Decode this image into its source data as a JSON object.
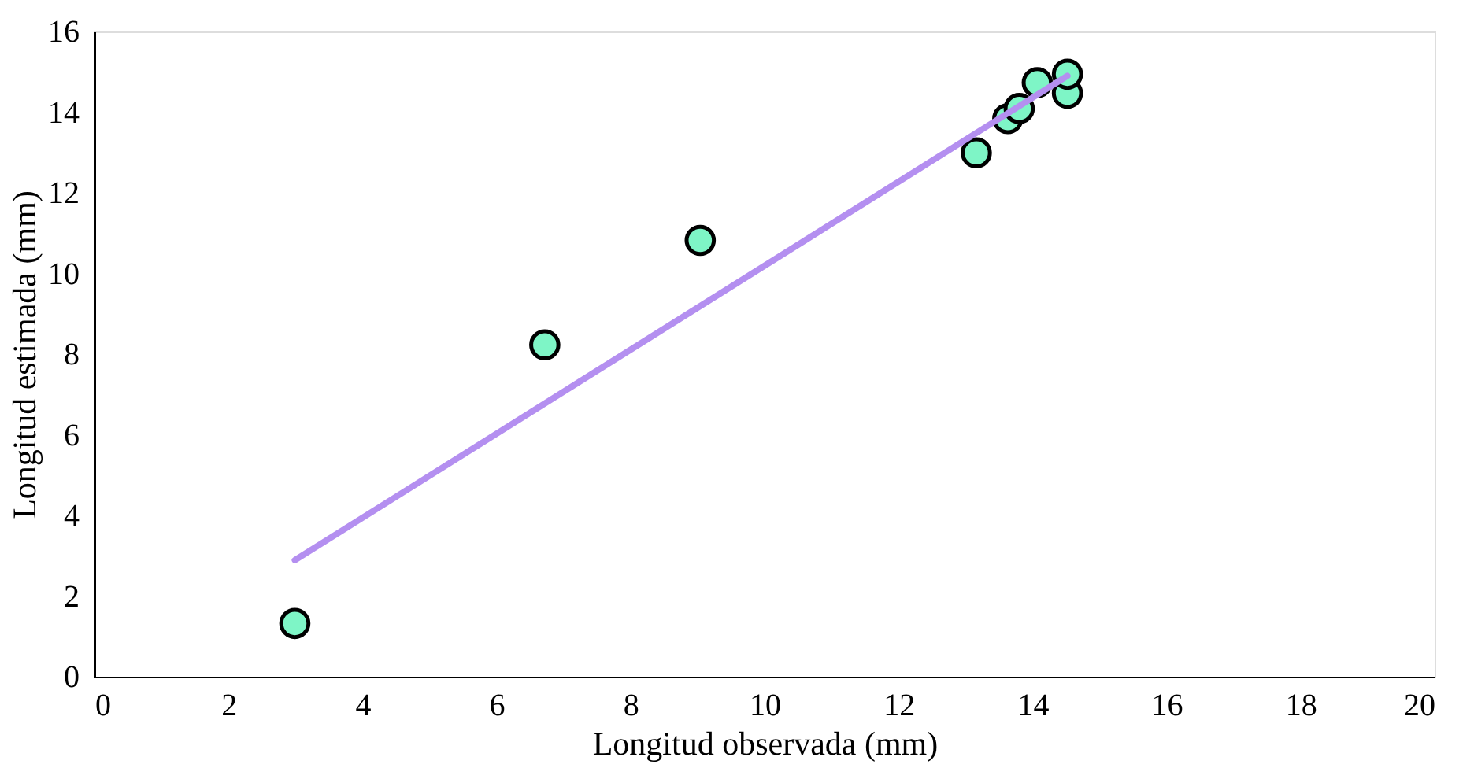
{
  "chart_data": {
    "type": "scatter",
    "xlabel": "Longitud observada (mm)",
    "ylabel": "Longitud estimada (mm)",
    "xlim": [
      0,
      20
    ],
    "xticks": [
      0,
      2,
      4,
      6,
      8,
      10,
      12,
      14,
      16,
      18,
      20
    ],
    "ylim": [
      0,
      16
    ],
    "yticks": [
      0,
      2,
      4,
      6,
      8,
      10,
      12,
      14,
      16
    ],
    "grid": false,
    "marker": "circle",
    "series": [
      {
        "color": "#7ef5c6",
        "x": [
          2.99,
          6.72,
          9.04,
          13.16,
          13.63,
          13.8,
          14.07,
          14.52,
          14.52
        ],
        "values": [
          1.32,
          8.23,
          10.82,
          12.99,
          13.84,
          14.09,
          14.73,
          14.47,
          14.94
        ]
      },
      {
        "type": "line",
        "color": "#b48ff0",
        "line_style": "solid",
        "marker": "none",
        "x": [
          2.99,
          14.52
        ],
        "values": [
          2.89,
          14.9
        ]
      }
    ]
  }
}
